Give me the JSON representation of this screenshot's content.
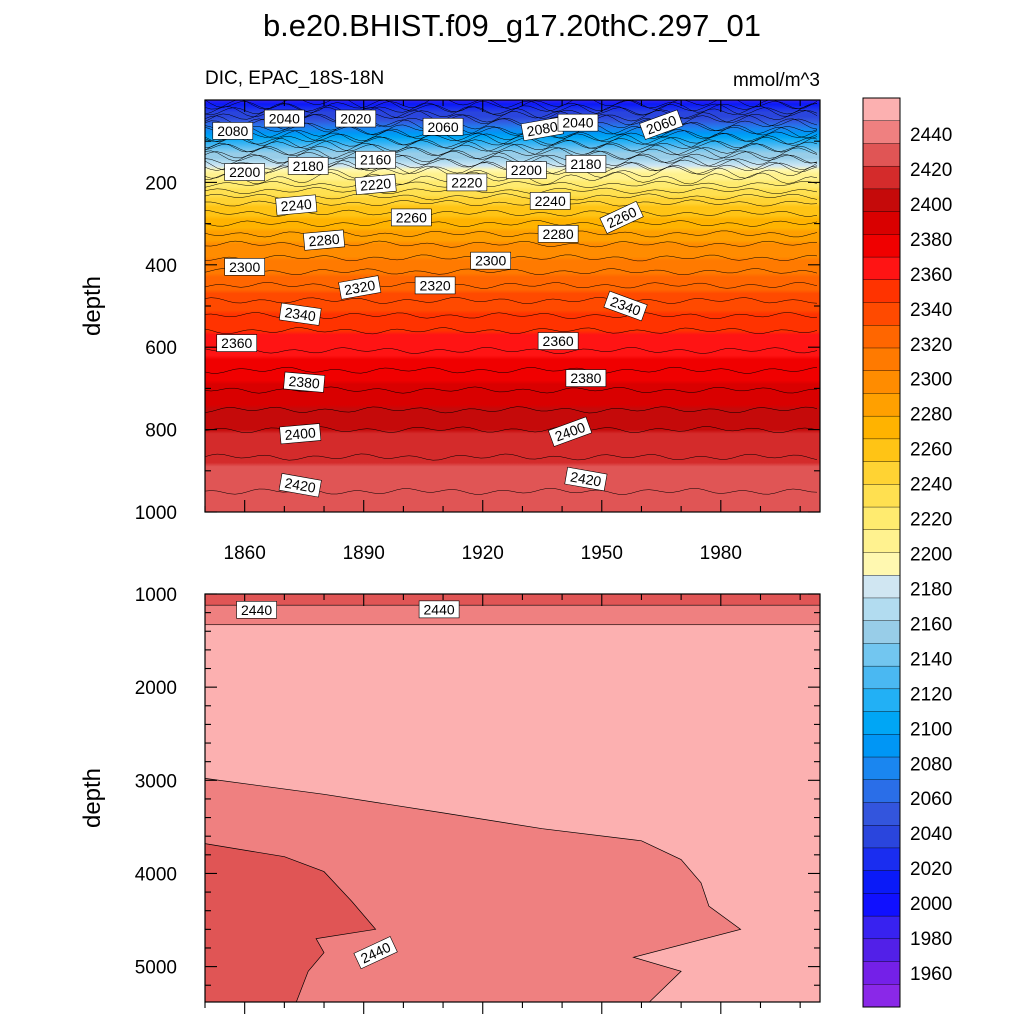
{
  "title": "b.e20.BHIST.f09_g17.20thC.297_01",
  "subtitle_left": "DIC, EPAC_18S-18N",
  "subtitle_right": "mmol/m^3",
  "chart_data": [
    {
      "type": "heatmap",
      "panel": "upper",
      "ylabel": "depth",
      "y_reversed": true,
      "ylim": [
        1000,
        0
      ],
      "xlim": [
        1850,
        2005
      ],
      "x_ticks": [
        1860,
        1890,
        1920,
        1950,
        1980
      ],
      "x_tick_labels": [
        "1860",
        "1890",
        "1920",
        "1950",
        "1980"
      ],
      "y_ticks": [
        200,
        400,
        600,
        800,
        1000
      ],
      "y_tick_labels": [
        "200",
        "400",
        "600",
        "800",
        "1000"
      ],
      "depth_profile": [
        {
          "depth": 0,
          "value": 2000
        },
        {
          "depth": 30,
          "value": 2040
        },
        {
          "depth": 70,
          "value": 2080
        },
        {
          "depth": 120,
          "value": 2140
        },
        {
          "depth": 175,
          "value": 2200
        },
        {
          "depth": 250,
          "value": 2250
        },
        {
          "depth": 350,
          "value": 2290
        },
        {
          "depth": 450,
          "value": 2320
        },
        {
          "depth": 560,
          "value": 2350
        },
        {
          "depth": 680,
          "value": 2375
        },
        {
          "depth": 800,
          "value": 2400
        },
        {
          "depth": 900,
          "value": 2415
        },
        {
          "depth": 1000,
          "value": 2425
        }
      ],
      "contour_labels": [
        {
          "text": "2080",
          "x": 1857,
          "depth": 75,
          "angle": 0
        },
        {
          "text": "2040",
          "x": 1870,
          "depth": 45,
          "angle": 0
        },
        {
          "text": "2020",
          "x": 1888,
          "depth": 45,
          "angle": 0
        },
        {
          "text": "2060",
          "x": 1910,
          "depth": 65,
          "angle": 0
        },
        {
          "text": "2080",
          "x": 1935,
          "depth": 70,
          "angle": -10
        },
        {
          "text": "2040",
          "x": 1944,
          "depth": 55,
          "angle": 0
        },
        {
          "text": "2060",
          "x": 1965,
          "depth": 60,
          "angle": -20
        },
        {
          "text": "2200",
          "x": 1860,
          "depth": 175,
          "angle": 0
        },
        {
          "text": "2180",
          "x": 1876,
          "depth": 160,
          "angle": 0
        },
        {
          "text": "2160",
          "x": 1893,
          "depth": 145,
          "angle": 0
        },
        {
          "text": "2220",
          "x": 1893,
          "depth": 205,
          "angle": -5
        },
        {
          "text": "2220",
          "x": 1916,
          "depth": 200,
          "angle": 0
        },
        {
          "text": "2200",
          "x": 1931,
          "depth": 170,
          "angle": 0
        },
        {
          "text": "2180",
          "x": 1946,
          "depth": 155,
          "angle": 0
        },
        {
          "text": "2240",
          "x": 1873,
          "depth": 255,
          "angle": -5
        },
        {
          "text": "2260",
          "x": 1902,
          "depth": 285,
          "angle": 0
        },
        {
          "text": "2240",
          "x": 1937,
          "depth": 245,
          "angle": 0
        },
        {
          "text": "2260",
          "x": 1955,
          "depth": 285,
          "angle": -25
        },
        {
          "text": "2280",
          "x": 1880,
          "depth": 340,
          "angle": -5
        },
        {
          "text": "2280",
          "x": 1939,
          "depth": 325,
          "angle": 0
        },
        {
          "text": "2300",
          "x": 1860,
          "depth": 405,
          "angle": 0
        },
        {
          "text": "2300",
          "x": 1922,
          "depth": 390,
          "angle": 0
        },
        {
          "text": "2320",
          "x": 1889,
          "depth": 455,
          "angle": -10
        },
        {
          "text": "2320",
          "x": 1908,
          "depth": 450,
          "angle": 0
        },
        {
          "text": "2340",
          "x": 1874,
          "depth": 520,
          "angle": 8
        },
        {
          "text": "2340",
          "x": 1956,
          "depth": 500,
          "angle": 20
        },
        {
          "text": "2360",
          "x": 1858,
          "depth": 590,
          "angle": 0
        },
        {
          "text": "2360",
          "x": 1939,
          "depth": 585,
          "angle": 0
        },
        {
          "text": "2380",
          "x": 1875,
          "depth": 685,
          "angle": 5
        },
        {
          "text": "2380",
          "x": 1946,
          "depth": 675,
          "angle": 0
        },
        {
          "text": "2400",
          "x": 1874,
          "depth": 810,
          "angle": -5
        },
        {
          "text": "2400",
          "x": 1942,
          "depth": 805,
          "angle": -20
        },
        {
          "text": "2420",
          "x": 1874,
          "depth": 935,
          "angle": 10
        },
        {
          "text": "2420",
          "x": 1946,
          "depth": 920,
          "angle": 10
        }
      ]
    },
    {
      "type": "heatmap",
      "panel": "lower",
      "ylabel": "depth",
      "y_reversed": true,
      "ylim": [
        5380,
        1000
      ],
      "xlim": [
        1850,
        2005
      ],
      "y_ticks": [
        1000,
        2000,
        3000,
        4000,
        5000
      ],
      "y_tick_labels": [
        "1000",
        "2000",
        "3000",
        "4000",
        "5000"
      ],
      "regions": [
        {
          "value_range": [
            2440,
            2450
          ],
          "color": "#fcb0b0",
          "description": "background"
        },
        {
          "value_range": [
            2430,
            2440
          ],
          "color": "#ef8080",
          "boundary": [
            [
              1850,
              2980
            ],
            [
              1880,
              3150
            ],
            [
              1910,
              3350
            ],
            [
              1935,
              3520
            ],
            [
              1960,
              3650
            ],
            [
              1970,
              3850
            ],
            [
              1975,
              4100
            ],
            [
              1977,
              4350
            ],
            [
              1985,
              4600
            ],
            [
              1958,
              4900
            ],
            [
              1970,
              5050
            ],
            [
              1962,
              5380
            ]
          ]
        },
        {
          "value_range": [
            2420,
            2430
          ],
          "color": "#e05555",
          "boundary": [
            [
              1850,
              3680
            ],
            [
              1870,
              3820
            ],
            [
              1880,
              3980
            ],
            [
              1887,
              4300
            ],
            [
              1893,
              4600
            ],
            [
              1878,
              4700
            ],
            [
              1880,
              4850
            ],
            [
              1876,
              5050
            ],
            [
              1873,
              5380
            ]
          ]
        }
      ],
      "top_bands": [
        {
          "value_range": [
            2420,
            2430
          ],
          "color": "#e05555",
          "depth_start": 1000,
          "depth_end": 1120
        },
        {
          "value_range": [
            2430,
            2440
          ],
          "color": "#ef8080",
          "depth_start": 1120,
          "depth_end": 1330
        }
      ],
      "contour_labels": [
        {
          "text": "2440",
          "x": 1863,
          "depth": 1170,
          "angle": 0
        },
        {
          "text": "2440",
          "x": 1909,
          "depth": 1165,
          "angle": 0
        },
        {
          "text": "2440",
          "x": 1893,
          "depth": 4850,
          "angle": -25
        }
      ]
    }
  ],
  "colorbar": {
    "labels": [
      "2440",
      "2420",
      "2400",
      "2380",
      "2360",
      "2340",
      "2320",
      "2300",
      "2280",
      "2260",
      "2240",
      "2220",
      "2200",
      "2180",
      "2160",
      "2140",
      "2120",
      "2100",
      "2080",
      "2060",
      "2040",
      "2020",
      "2000",
      "1980",
      "1960"
    ],
    "colors": [
      "#fcb0b0",
      "#ef8080",
      "#e05555",
      "#d42b2b",
      "#c50a0a",
      "#d90000",
      "#f00000",
      "#ff1414",
      "#ff3300",
      "#ff4a00",
      "#ff6600",
      "#ff7a00",
      "#ff8c00",
      "#ffa000",
      "#ffb300",
      "#ffc415",
      "#ffd333",
      "#ffe050",
      "#ffeb6f",
      "#fff28f",
      "#fff8b0",
      "#d0e6f2",
      "#b2dcf0",
      "#98cde8",
      "#72c6f0",
      "#4ab8f2",
      "#22b0f5",
      "#00a6f5",
      "#0096f5",
      "#1a86f0",
      "#2a6ee8",
      "#3355dd",
      "#2a45dd",
      "#1a2df0",
      "#0a1af8",
      "#1010ff",
      "#3822f0",
      "#5220e8",
      "#7420e8",
      "#8a28e8"
    ]
  }
}
